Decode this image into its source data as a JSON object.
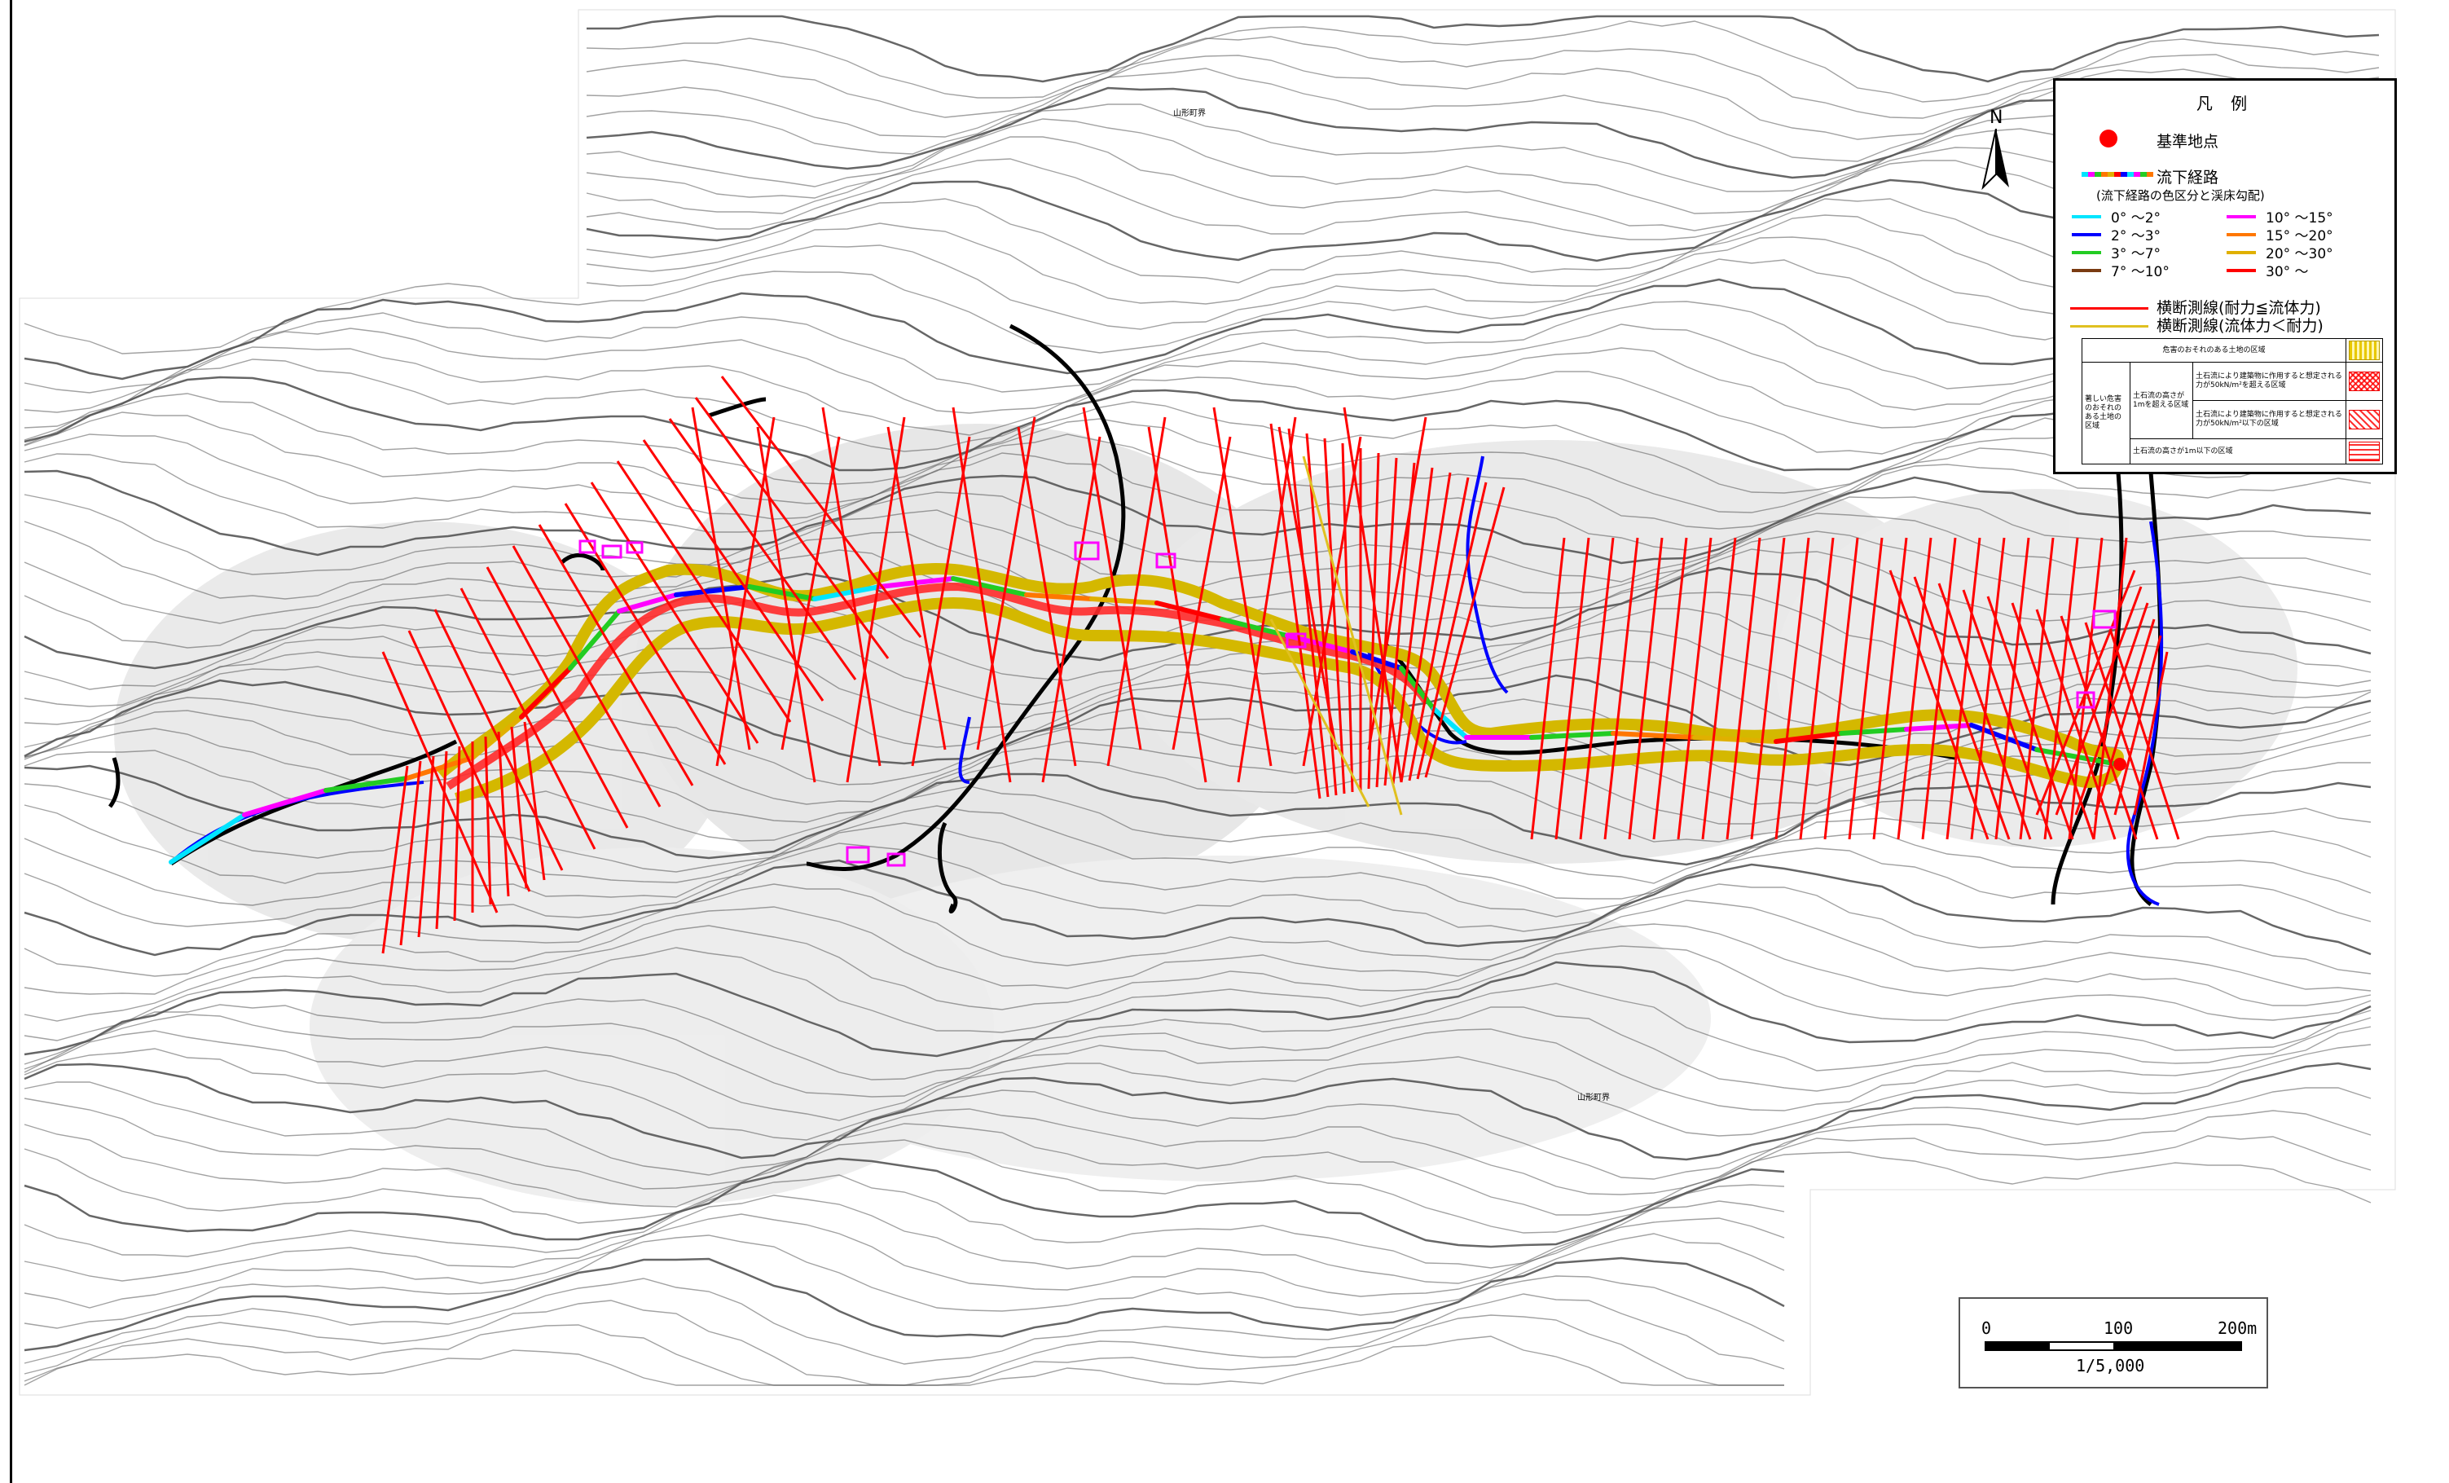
{
  "map": {
    "place_label_top": "山形町界",
    "place_label_bottom": "山形町界"
  },
  "legend": {
    "title": "凡 例",
    "reference_point": "基準地点",
    "flow_path": "流下経路",
    "flow_path_note": "(流下経路の色区分と渓床勾配)",
    "gradient_classes": [
      {
        "label": "0° ～2°",
        "color": "#00e5ff"
      },
      {
        "label": "2° ～3°",
        "color": "#0000ff"
      },
      {
        "label": "3° ～7°",
        "color": "#22cc22"
      },
      {
        "label": "7° ～10°",
        "color": "#7a3b12"
      },
      {
        "label": "10° ～15°",
        "color": "#ff00ff"
      },
      {
        "label": "15° ～20°",
        "color": "#ff7700"
      },
      {
        "label": "20° ～30°",
        "color": "#e0b000"
      },
      {
        "label": "30° ～",
        "color": "#ff0000"
      }
    ],
    "cross_line_red": "横断測線(耐力≦流体力)",
    "cross_line_yellow": "横断測線(流体力＜耐力)",
    "zones": {
      "hazard_area": "危害のおそれのある土地の区域",
      "severe_area": "著しい危害のおそれのある土地の区域",
      "height_over_1m": "土石流の高さが1mを超える区域",
      "force_over_50": "土石流により建築物に作用すると想定される力が50kN/m²を超える区域",
      "force_under_50": "土石流により建築物に作用すると想定される力が50kN/m²以下の区域",
      "height_under_1m": "土石流の高さが1m以下の区域"
    }
  },
  "north_arrow": {
    "label": "N"
  },
  "scale_bar": {
    "tick_0": "0",
    "tick_100": "100",
    "tick_200": "200m",
    "ratio": "1/5,000"
  },
  "colors": {
    "contour": "#555555",
    "shading": "#cfcfcf",
    "cross_red": "#ff0000",
    "cross_yellow": "#e0c020",
    "hazard_band": "#d4b800",
    "road": "#000000",
    "building": "#ff00ff"
  }
}
